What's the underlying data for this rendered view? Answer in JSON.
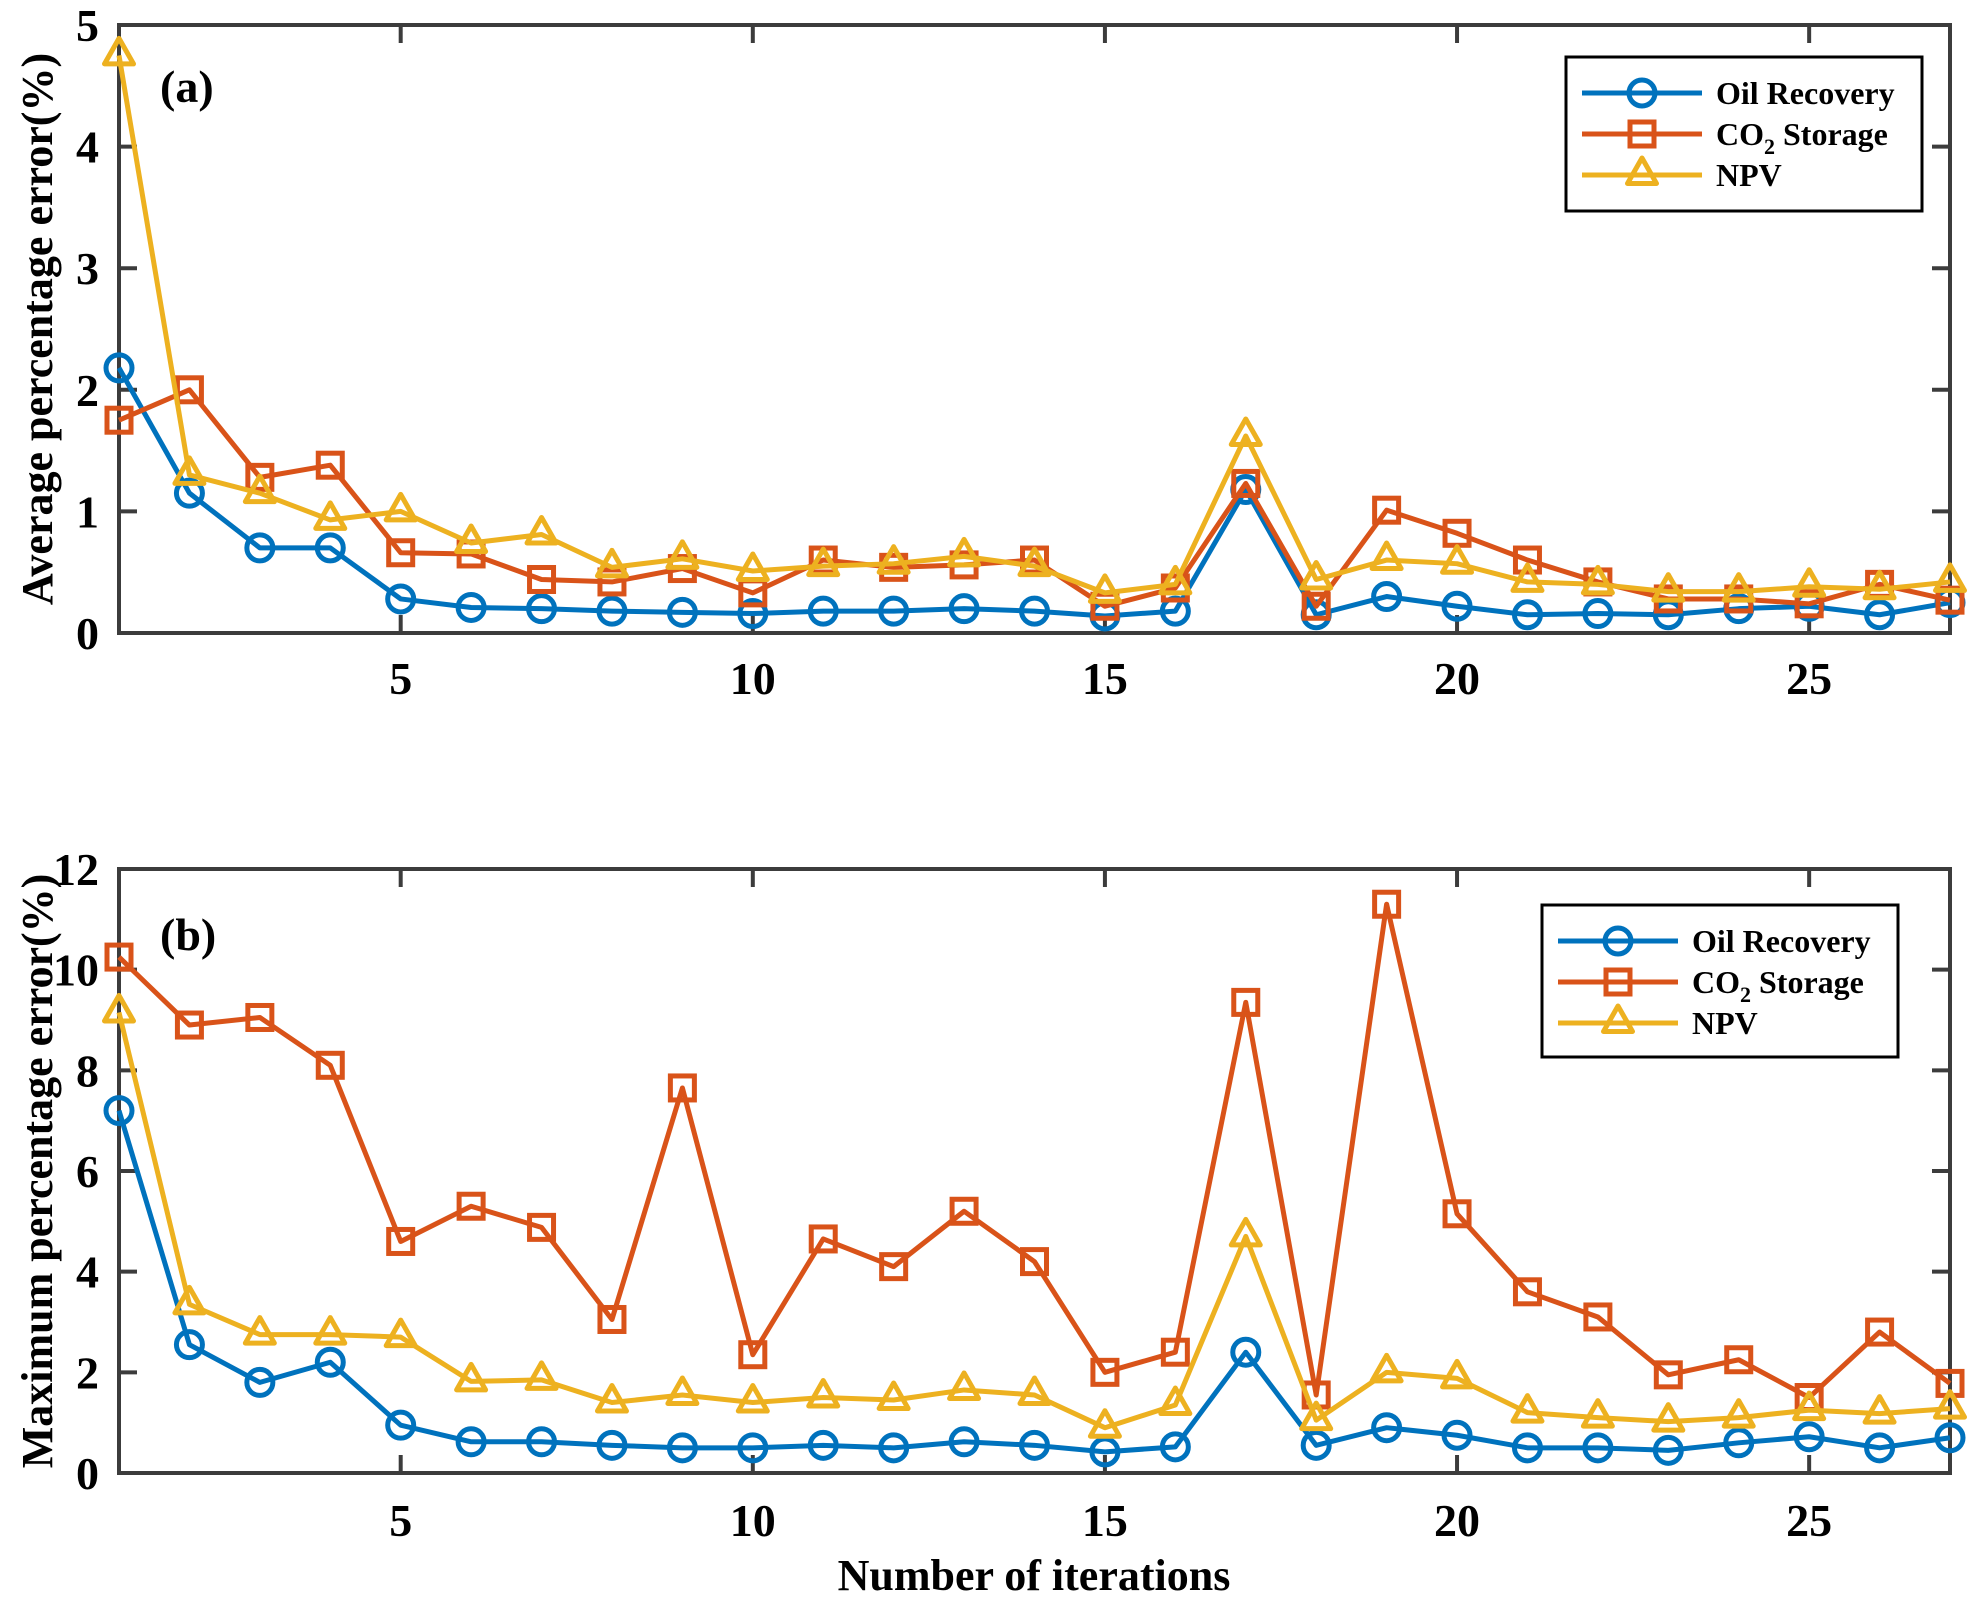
{
  "figure": {
    "background": "#ffffff",
    "axis_color": "#3c3c3c",
    "text_color": "#000000",
    "legend_border_color": "#000000",
    "legend_background": "#ffffff"
  },
  "chart_data": [
    {
      "type": "line",
      "panel_label": "(a)",
      "ylabel": "Average percentage error(%)",
      "xlabel": "",
      "xlim": [
        1,
        27
      ],
      "ylim": [
        0,
        5
      ],
      "xticks": [
        5,
        10,
        15,
        20,
        25
      ],
      "yticks": [
        0,
        1,
        2,
        3,
        4,
        5
      ],
      "grid": false,
      "legend_position": "northeast",
      "legend_entries": [
        "Oil Recovery",
        "CO₂ Storage",
        "NPV"
      ],
      "x": [
        1,
        2,
        3,
        4,
        5,
        6,
        7,
        8,
        9,
        10,
        11,
        12,
        13,
        14,
        15,
        16,
        17,
        18,
        19,
        20,
        21,
        22,
        23,
        24,
        25,
        26,
        27
      ],
      "series": [
        {
          "name": "Oil Recovery",
          "color": "#0072BD",
          "marker": "circle",
          "values": [
            2.18,
            1.15,
            0.7,
            0.7,
            0.28,
            0.21,
            0.2,
            0.18,
            0.17,
            0.16,
            0.18,
            0.18,
            0.2,
            0.18,
            0.14,
            0.18,
            1.18,
            0.15,
            0.3,
            0.22,
            0.15,
            0.16,
            0.15,
            0.2,
            0.22,
            0.15,
            0.25
          ]
        },
        {
          "name": "CO₂ Storage",
          "color": "#D95319",
          "marker": "square",
          "values": [
            1.75,
            2.0,
            1.28,
            1.38,
            0.66,
            0.65,
            0.44,
            0.42,
            0.53,
            0.33,
            0.6,
            0.54,
            0.56,
            0.6,
            0.22,
            0.37,
            1.23,
            0.22,
            1.01,
            0.82,
            0.6,
            0.42,
            0.28,
            0.28,
            0.24,
            0.4,
            0.27
          ]
        },
        {
          "name": "NPV",
          "color": "#EDB120",
          "marker": "triangle",
          "values": [
            4.75,
            1.3,
            1.15,
            0.93,
            1.0,
            0.74,
            0.81,
            0.54,
            0.61,
            0.51,
            0.55,
            0.57,
            0.63,
            0.55,
            0.33,
            0.4,
            1.62,
            0.44,
            0.6,
            0.57,
            0.42,
            0.4,
            0.34,
            0.34,
            0.38,
            0.36,
            0.42
          ]
        }
      ]
    },
    {
      "type": "line",
      "panel_label": "(b)",
      "ylabel": "Maximum percentage error(%)",
      "xlabel": "Number of iterations",
      "xlim": [
        1,
        27
      ],
      "ylim": [
        0,
        12
      ],
      "xticks": [
        5,
        10,
        15,
        20,
        25
      ],
      "yticks": [
        0,
        2,
        4,
        6,
        8,
        10,
        12
      ],
      "grid": false,
      "legend_position": "northeast",
      "legend_entries": [
        "Oil Recovery",
        "CO₂ Storage",
        "NPV"
      ],
      "x": [
        1,
        2,
        3,
        4,
        5,
        6,
        7,
        8,
        9,
        10,
        11,
        12,
        13,
        14,
        15,
        16,
        17,
        18,
        19,
        20,
        21,
        22,
        23,
        24,
        25,
        26,
        27
      ],
      "series": [
        {
          "name": "Oil Recovery",
          "color": "#0072BD",
          "marker": "circle",
          "values": [
            7.2,
            2.55,
            1.8,
            2.2,
            0.95,
            0.62,
            0.62,
            0.55,
            0.5,
            0.5,
            0.55,
            0.5,
            0.62,
            0.55,
            0.42,
            0.52,
            2.4,
            0.55,
            0.9,
            0.75,
            0.5,
            0.5,
            0.45,
            0.6,
            0.72,
            0.5,
            0.7
          ]
        },
        {
          "name": "CO₂ Storage",
          "color": "#D95319",
          "marker": "square",
          "values": [
            10.25,
            8.9,
            9.05,
            8.1,
            4.6,
            5.3,
            4.88,
            3.05,
            7.65,
            2.35,
            4.65,
            4.1,
            5.2,
            4.2,
            2.0,
            2.4,
            9.35,
            1.55,
            11.3,
            5.15,
            3.6,
            3.1,
            1.95,
            2.25,
            1.5,
            2.8,
            1.78
          ]
        },
        {
          "name": "NPV",
          "color": "#EDB120",
          "marker": "triangle",
          "values": [
            9.15,
            3.35,
            2.75,
            2.75,
            2.7,
            1.82,
            1.85,
            1.4,
            1.55,
            1.4,
            1.5,
            1.45,
            1.65,
            1.55,
            0.9,
            1.35,
            4.7,
            1.05,
            2.0,
            1.88,
            1.2,
            1.1,
            1.02,
            1.1,
            1.25,
            1.18,
            1.28
          ]
        }
      ]
    }
  ]
}
